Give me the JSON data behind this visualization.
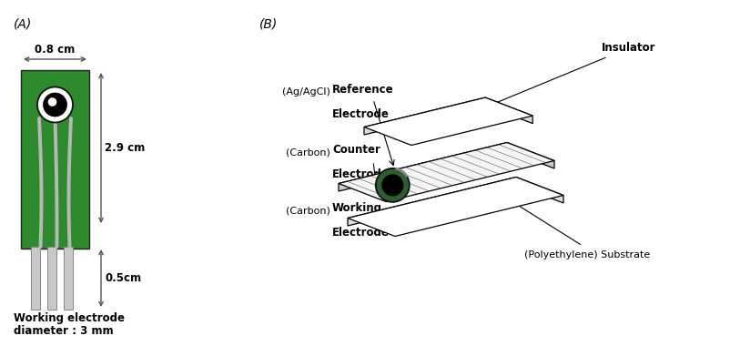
{
  "panel_A_label": "(A)",
  "panel_B_label": "(B)",
  "bg_color": "#ffffff",
  "green_color": "#2d8a2d",
  "silver": "#c8c8c8",
  "dim_08": "0.8 cm",
  "dim_29": "2.9 cm",
  "dim_05": "0.5cm",
  "label_working_line1": "Working electrode",
  "label_working_line2": "diameter : 3 mm",
  "ref_label_paren": "(Ag/AgCl)",
  "ref_label_main1": "Reference",
  "ref_label_main2": "Electrode",
  "counter_label_paren": "(Carbon)",
  "counter_label_main1": "Counter",
  "counter_label_main2": "Electrode",
  "working_label_paren": "(Carbon)",
  "working_label_main1": "Working",
  "working_label_main2": "Electrode",
  "substrate_label": "(Polyethylene) Substrate",
  "insulator_label": "Insulator"
}
